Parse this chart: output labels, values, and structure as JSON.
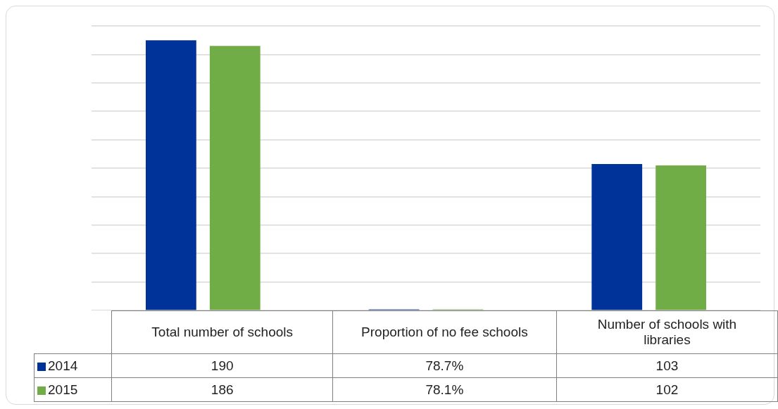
{
  "chart_data": {
    "type": "bar",
    "categories": [
      "Total number of schools",
      "Proportion of no fee schools",
      "Number of schools with libraries"
    ],
    "series": [
      {
        "name": "2014",
        "color": "#003399",
        "values": [
          190,
          0.787,
          103
        ],
        "value_labels": [
          "190",
          "78.7%",
          "103"
        ]
      },
      {
        "name": "2015",
        "color": "#70ad47",
        "values": [
          186,
          0.781,
          102
        ],
        "value_labels": [
          "186",
          "78.1%",
          "102"
        ]
      }
    ],
    "ylim": [
      0,
      200
    ],
    "yticks": [
      {
        "value": 0,
        "label": null
      },
      {
        "value": 20,
        "label": null
      },
      {
        "value": 40,
        "label": null
      },
      {
        "value": 60,
        "label": null
      },
      {
        "value": 80,
        "label": null
      },
      {
        "value": 100,
        "label": null
      },
      {
        "value": 120,
        "label": null
      },
      {
        "value": 140,
        "label": null
      },
      {
        "value": 160,
        "label": null
      },
      {
        "value": 180,
        "label": null
      },
      {
        "value": 200,
        "label": null
      }
    ],
    "grid": true,
    "tick_labels": "x",
    "legend": "bottom"
  }
}
